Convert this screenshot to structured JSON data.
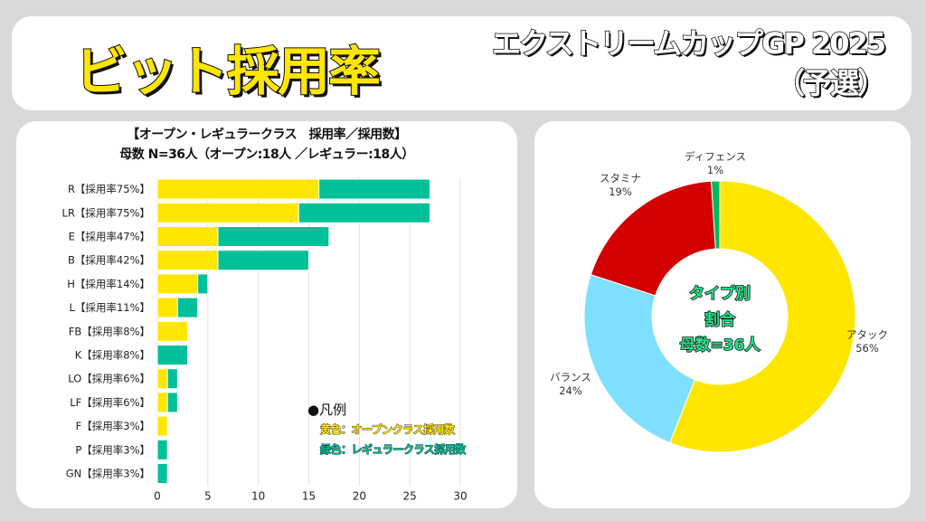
{
  "header": {
    "title": "ビット採用率",
    "subtitle_line1": "エクストリームカップGP 2025",
    "subtitle_line2": "（予選）"
  },
  "colors": {
    "open": "#ffe600",
    "regular": "#00c09a",
    "attack": "#ffe600",
    "balance": "#7fdfff",
    "stamina": "#d40000",
    "defense": "#00b85c"
  },
  "bar_panel": {
    "title_line1": "【オープン・レギュラークラス　採用率／採用数】",
    "title_line2": "母数 N=36人（オープン:18人 ／レギュラー:18人）",
    "legend_title": "●凡例",
    "legend_open": "黄色：オープンクラス採用数",
    "legend_regular": "緑色：レギュラークラス採用数"
  },
  "pie_panel": {
    "center_line1": "タイプ別",
    "center_line2": "割合",
    "center_line3": "母数=36人"
  },
  "chart_data": [
    {
      "type": "bar",
      "orientation": "horizontal",
      "stacked": true,
      "categories": [
        "R【採用率75%】",
        "LR【採用率75%】",
        "E【採用率47%】",
        "B【採用率42%】",
        "H【採用率14%】",
        "L【採用率11%】",
        "FB【採用率8%】",
        "K【採用率8%】",
        "LO【採用率6%】",
        "LF【採用率6%】",
        "F【採用率3%】",
        "P【採用率3%】",
        "GN【採用率3%】"
      ],
      "series": [
        {
          "name": "オープンクラス採用数",
          "color": "#ffe600",
          "values": [
            16,
            14,
            6,
            6,
            4,
            2,
            3,
            0,
            1,
            1,
            1,
            0,
            0
          ]
        },
        {
          "name": "レギュラークラス採用数",
          "color": "#00c09a",
          "values": [
            11,
            13,
            11,
            9,
            1,
            2,
            0,
            3,
            1,
            1,
            0,
            1,
            1
          ]
        }
      ],
      "xlim": [
        0,
        30
      ],
      "xticks": [
        "0",
        "5",
        "10",
        "15",
        "20",
        "25",
        "30"
      ],
      "grid": true
    },
    {
      "type": "pie",
      "donut": true,
      "slices": [
        {
          "label": "アタック",
          "value": 56,
          "value_label": "56%",
          "color": "#ffe600"
        },
        {
          "label": "バランス",
          "value": 24,
          "value_label": "24%",
          "color": "#7fdfff"
        },
        {
          "label": "スタミナ",
          "value": 19,
          "value_label": "19%",
          "color": "#d40000"
        },
        {
          "label": "ディフェンス",
          "value": 1,
          "value_label": "1%",
          "color": "#00b85c"
        }
      ]
    }
  ]
}
